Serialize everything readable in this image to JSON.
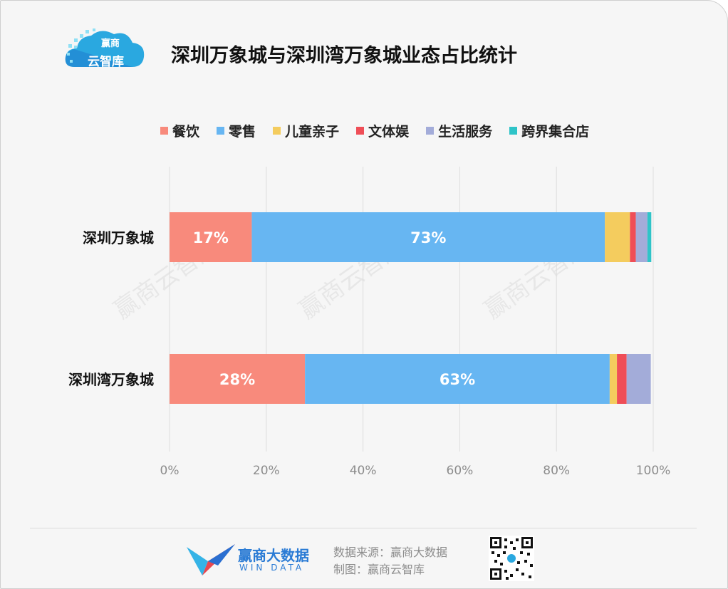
{
  "header": {
    "logo_line1": "赢商",
    "logo_line2": "云智库",
    "title": "深圳万象城与深圳湾万象城业态占比统计"
  },
  "colors": {
    "餐饮": "#f88a7c",
    "零售": "#67b6f2",
    "儿童亲子": "#f4cc5e",
    "文体娱": "#ef4e57",
    "生活服务": "#a3acd9",
    "跨界集合店": "#2fc4c8"
  },
  "chart_data": {
    "type": "bar",
    "orientation": "horizontal",
    "stacked": "percent",
    "categories": [
      "深圳万象城",
      "深圳湾万象城"
    ],
    "series": [
      {
        "name": "餐饮",
        "values": [
          17,
          28
        ],
        "labels": [
          "17%",
          "28%"
        ]
      },
      {
        "name": "零售",
        "values": [
          73,
          63
        ],
        "labels": [
          "73%",
          "63%"
        ]
      },
      {
        "name": "儿童亲子",
        "values": [
          5.2,
          1.5
        ],
        "labels": [
          "",
          ""
        ]
      },
      {
        "name": "文体娱",
        "values": [
          1.2,
          2.0
        ],
        "labels": [
          "",
          ""
        ]
      },
      {
        "name": "生活服务",
        "values": [
          2.4,
          5.0
        ],
        "labels": [
          "",
          ""
        ]
      },
      {
        "name": "跨界集合店",
        "values": [
          0.8,
          0
        ],
        "labels": [
          "",
          ""
        ]
      }
    ],
    "x_ticks": [
      "0%",
      "20%",
      "40%",
      "60%",
      "80%",
      "100%"
    ],
    "xlim": [
      0,
      100
    ],
    "grid": true,
    "legend": "top"
  },
  "watermark": "赢商云智库",
  "footer": {
    "brand_cn": "赢商大数据",
    "brand_en": "WIN DATA",
    "source": "数据来源：赢商大数据",
    "made_by": "制图：赢商云智库"
  }
}
